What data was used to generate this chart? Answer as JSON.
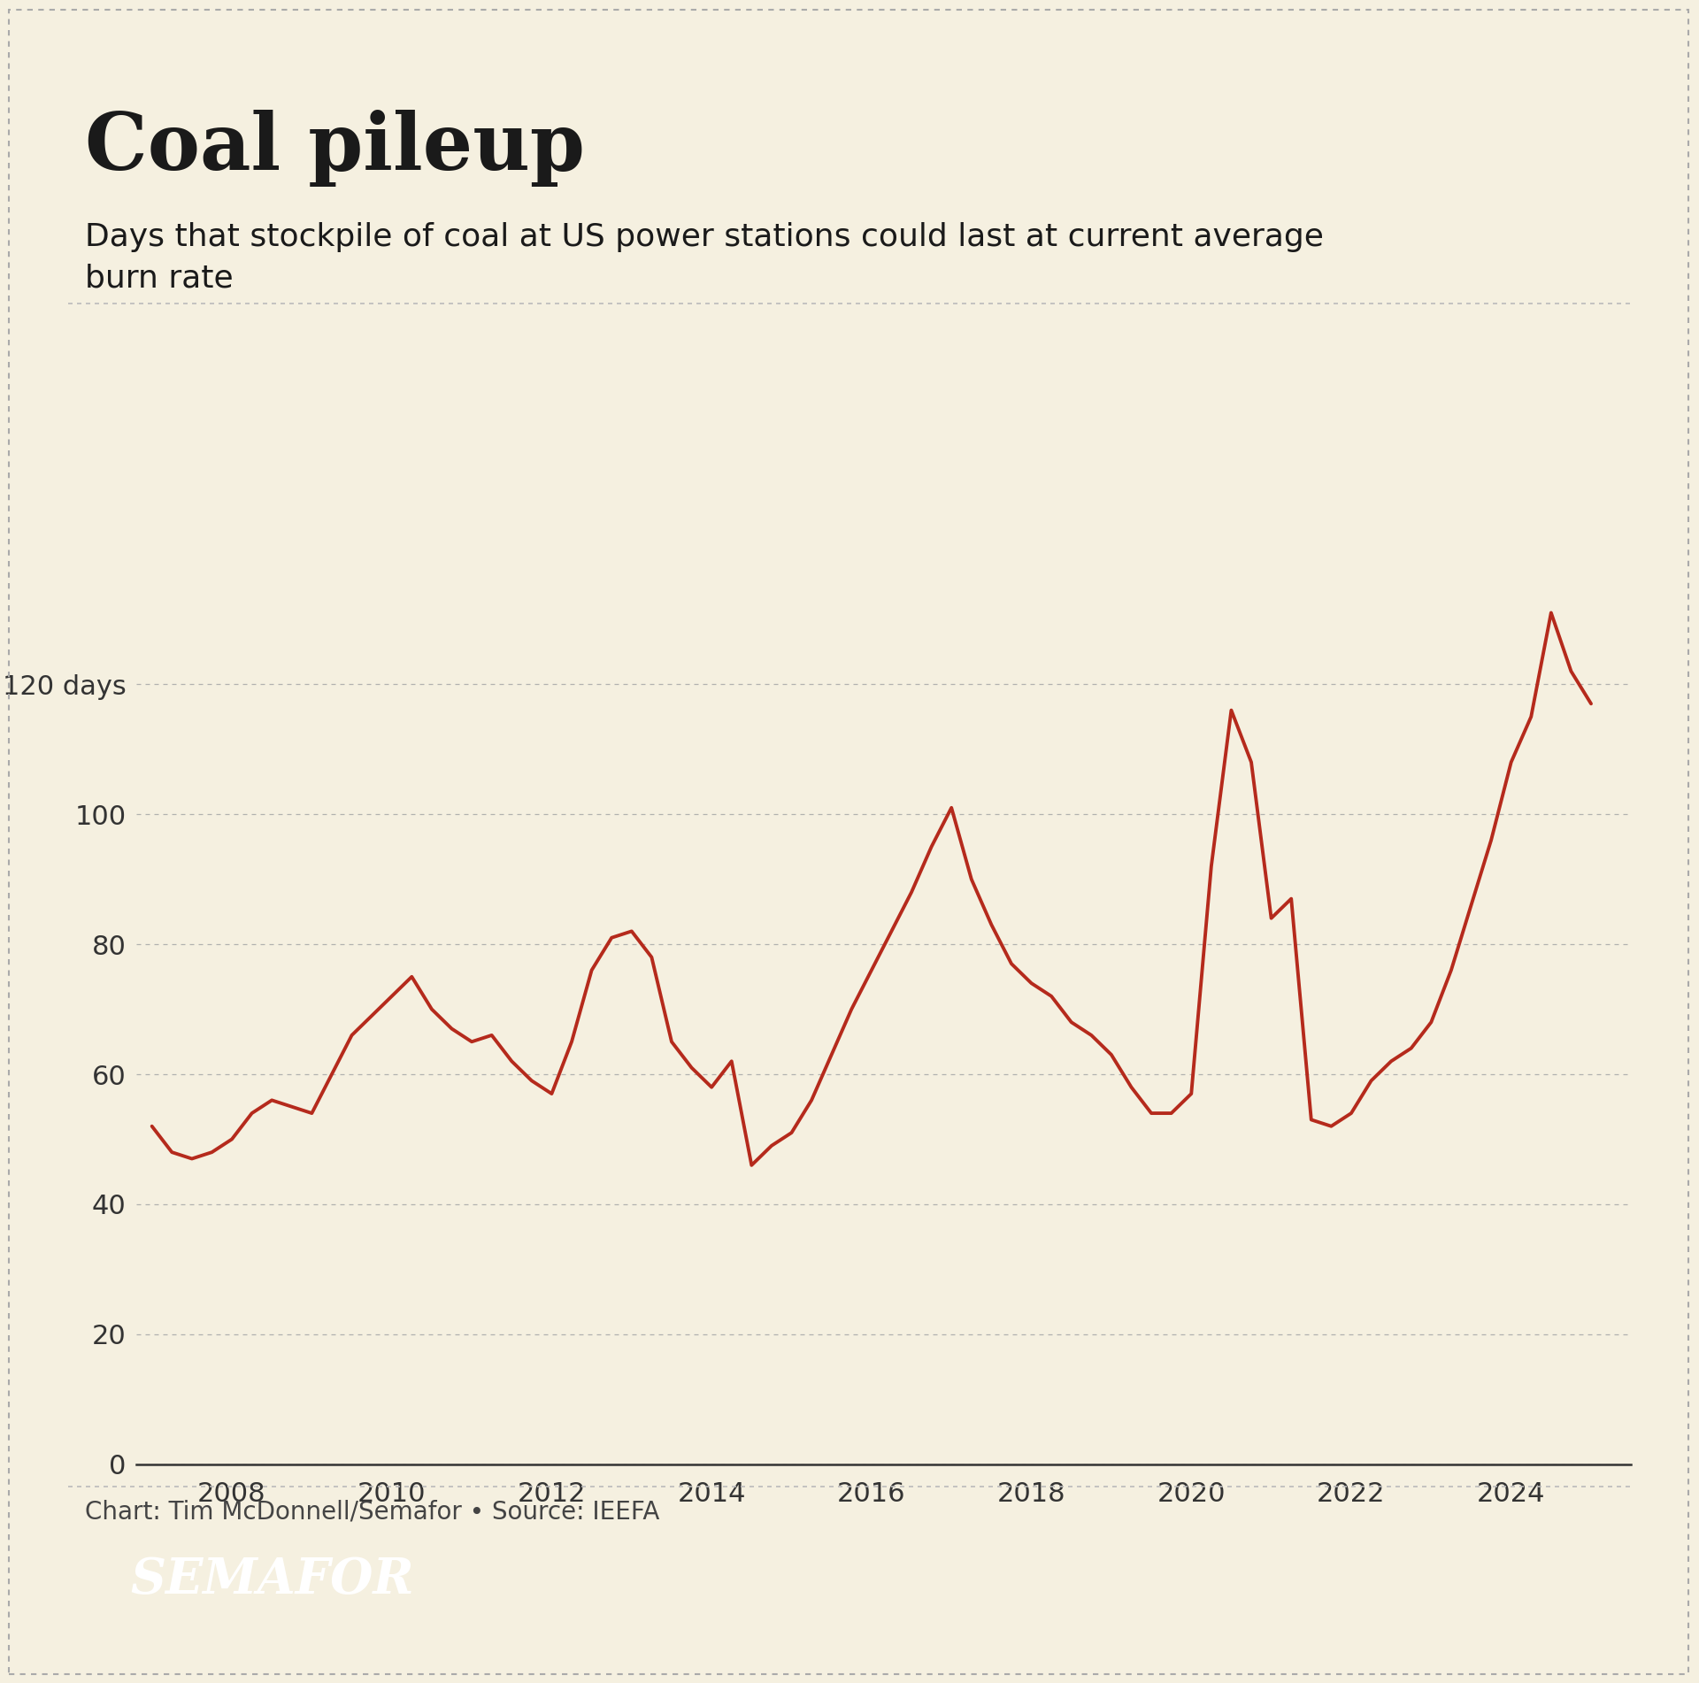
{
  "title": "Coal pileup",
  "subtitle": "Days that stockpile of coal at US power stations could last at current average\nburn rate",
  "attribution": "Chart: Tim McDonnell/Semafor • Source: IEEFA",
  "semafor_label": "SEMAFOR",
  "background_color": "#f5f0e0",
  "line_color": "#b52a1c",
  "line_width": 2.8,
  "yticks": [
    0,
    20,
    40,
    60,
    80,
    100,
    120
  ],
  "ylim": [
    0,
    145
  ],
  "xlim_start": 2006.8,
  "xlim_end": 2025.5,
  "xticks": [
    2008,
    2010,
    2012,
    2014,
    2016,
    2018,
    2020,
    2022,
    2024
  ],
  "x": [
    2007.0,
    2007.25,
    2007.5,
    2007.75,
    2008.0,
    2008.25,
    2008.5,
    2008.75,
    2009.0,
    2009.25,
    2009.5,
    2009.75,
    2010.0,
    2010.25,
    2010.5,
    2010.75,
    2011.0,
    2011.25,
    2011.5,
    2011.75,
    2012.0,
    2012.25,
    2012.5,
    2012.75,
    2013.0,
    2013.25,
    2013.5,
    2013.75,
    2014.0,
    2014.25,
    2014.5,
    2014.75,
    2015.0,
    2015.25,
    2015.5,
    2015.75,
    2016.0,
    2016.25,
    2016.5,
    2016.75,
    2017.0,
    2017.25,
    2017.5,
    2017.75,
    2018.0,
    2018.25,
    2018.5,
    2018.75,
    2019.0,
    2019.25,
    2019.5,
    2019.75,
    2020.0,
    2020.25,
    2020.5,
    2020.75,
    2021.0,
    2021.25,
    2021.5,
    2021.75,
    2022.0,
    2022.25,
    2022.5,
    2022.75,
    2023.0,
    2023.25,
    2023.5,
    2023.75,
    2024.0,
    2024.25,
    2024.5,
    2024.75,
    2025.0
  ],
  "y": [
    52,
    48,
    47,
    48,
    50,
    54,
    56,
    55,
    54,
    60,
    66,
    69,
    72,
    75,
    70,
    67,
    65,
    66,
    62,
    59,
    57,
    65,
    76,
    81,
    82,
    78,
    65,
    61,
    58,
    62,
    46,
    49,
    51,
    56,
    63,
    70,
    76,
    82,
    88,
    95,
    101,
    90,
    83,
    77,
    74,
    72,
    68,
    66,
    63,
    58,
    54,
    54,
    57,
    92,
    116,
    108,
    84,
    87,
    53,
    52,
    54,
    59,
    62,
    64,
    68,
    76,
    86,
    96,
    108,
    115,
    131,
    122,
    117
  ]
}
